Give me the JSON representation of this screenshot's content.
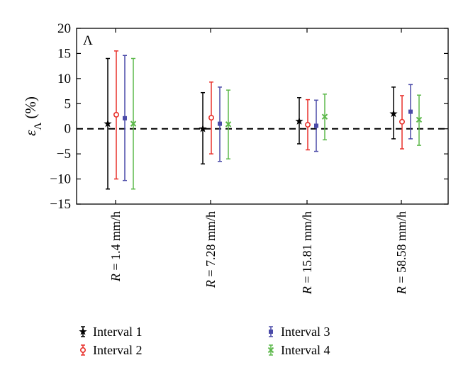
{
  "chart_data": {
    "type": "errorbar",
    "panel_label": "Λ",
    "ylabel_symbol": "ε",
    "ylabel_sub": "Λ",
    "ylabel_unit": "(%)",
    "ylim": [
      -15,
      20
    ],
    "yticks": [
      -15,
      -10,
      -5,
      0,
      5,
      10,
      15,
      20
    ],
    "reference_line": 0,
    "categories": [
      {
        "prefix": "R",
        "text": " = 1.4 mm/h"
      },
      {
        "prefix": "R",
        "text": " = 7.28 mm/h"
      },
      {
        "prefix": "R",
        "text": " = 15.81 mm/h"
      },
      {
        "prefix": "R",
        "text": " = 58.58 mm/h"
      }
    ],
    "series": [
      {
        "name": "Interval 1",
        "color": "#000000",
        "marker": "star",
        "mean": [
          1.0,
          0.0,
          1.5,
          3.0
        ],
        "low": [
          -12.0,
          -7.0,
          -3.0,
          -2.0
        ],
        "high": [
          14.0,
          7.2,
          6.2,
          8.3
        ]
      },
      {
        "name": "Interval 2",
        "color": "#e8302a",
        "marker": "circle",
        "mean": [
          2.8,
          2.2,
          0.8,
          1.4
        ],
        "low": [
          -10.0,
          -5.0,
          -4.2,
          -4.0
        ],
        "high": [
          15.5,
          9.3,
          5.8,
          6.6
        ]
      },
      {
        "name": "Interval 3",
        "color": "#4a4aa8",
        "marker": "square",
        "mean": [
          2.1,
          1.0,
          0.6,
          3.4
        ],
        "low": [
          -10.3,
          -6.5,
          -4.5,
          -2.0
        ],
        "high": [
          14.6,
          8.3,
          5.7,
          8.8
        ]
      },
      {
        "name": "Interval 4",
        "color": "#5cb84a",
        "marker": "x",
        "mean": [
          1.0,
          0.9,
          2.4,
          1.8
        ],
        "low": [
          -12.0,
          -6.0,
          -2.2,
          -3.3
        ],
        "high": [
          14.0,
          7.7,
          6.9,
          6.7
        ]
      }
    ],
    "legend_position": "bottom"
  }
}
